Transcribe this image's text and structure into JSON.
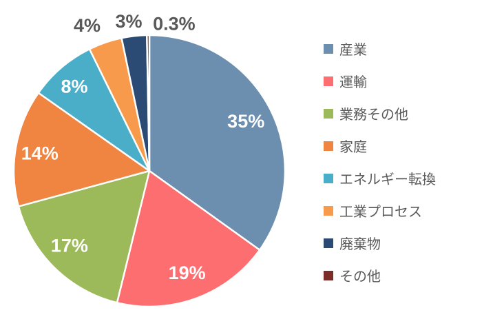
{
  "chart_data": {
    "type": "pie",
    "title": "",
    "legend_position": "right",
    "start_angle_deg": 0,
    "direction": "clockwise",
    "background_color": "#FFFFFF",
    "slice_border_color": "#FFFFFF",
    "inside_label_color": "#FFFFFF",
    "outside_label_color": "#595959",
    "slices": [
      {
        "key": "industry",
        "label": "産業",
        "value": 35,
        "display": "35%",
        "color": "#6C8EAF",
        "label_placement": "inside"
      },
      {
        "key": "transport",
        "label": "運輸",
        "value": 19,
        "display": "19%",
        "color": "#FC6E6F",
        "label_placement": "inside"
      },
      {
        "key": "commercial-other",
        "label": "業務その他",
        "value": 17,
        "display": "17%",
        "color": "#9CBA59",
        "label_placement": "inside"
      },
      {
        "key": "residential",
        "label": "家庭",
        "value": 14,
        "display": "14%",
        "color": "#F08441",
        "label_placement": "inside"
      },
      {
        "key": "energy-conversion",
        "label": "エネルギー転換",
        "value": 8,
        "display": "8%",
        "color": "#4BAEC9",
        "label_placement": "inside"
      },
      {
        "key": "industrial-process",
        "label": "工業プロセス",
        "value": 4,
        "display": "4%",
        "color": "#F79A4C",
        "label_placement": "outside"
      },
      {
        "key": "waste",
        "label": "廃棄物",
        "value": 3,
        "display": "3%",
        "color": "#2C4B74",
        "label_placement": "outside"
      },
      {
        "key": "other",
        "label": "その他",
        "value": 0.3,
        "display": "0.3%",
        "color": "#7B2D29",
        "label_placement": "outside"
      }
    ]
  }
}
